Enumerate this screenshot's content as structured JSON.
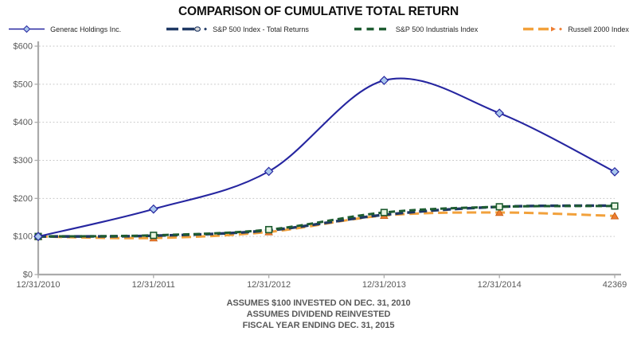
{
  "title": "COMPARISON OF CUMULATIVE TOTAL RETURN",
  "footer": {
    "line1": "ASSUMES $100 INVESTED ON DEC. 31, 2010",
    "line2": "ASSUMES DIVIDEND REINVESTED",
    "line3": "FISCAL YEAR ENDING DEC. 31, 2015"
  },
  "colors": {
    "generac_line": "#2626A0",
    "generac_marker_fill": "#A9C7EC",
    "sp500_line": "#1F3864",
    "sp500_marker_fill": "#D9D9D9",
    "industrials_line": "#1E5C31",
    "industrials_marker_fill": "#EAF5E2",
    "russell_line": "#F2A13B",
    "russell_marker_fill": "#ED7D31",
    "axis": "#ABABAB",
    "gridline": "#C6C6C6",
    "tick_label": "#595959"
  },
  "chart_data": {
    "type": "line",
    "title": "COMPARISON OF CUMULATIVE TOTAL RETURN",
    "categories": [
      "12/31/2010",
      "12/31/2011",
      "12/31/2012",
      "12/31/2013",
      "12/31/2014",
      "42369"
    ],
    "y_ticks": [
      "$0",
      "$100",
      "$200",
      "$300",
      "$400",
      "$500",
      "$600"
    ],
    "y_tick_values": [
      0,
      100,
      200,
      300,
      400,
      500,
      600
    ],
    "ylim": [
      0,
      600
    ],
    "grid": "horizontal dotted",
    "legend_position": "top",
    "line_smoothing": true,
    "series": [
      {
        "name": "Generac Holdings Inc.",
        "values": [
          100,
          172,
          271,
          510,
          424,
          270
        ],
        "color": "#2626A0",
        "style": "solid",
        "marker": "diamond",
        "marker_fill": "#A9C7EC"
      },
      {
        "name": "S&P 500 Index - Total Returns",
        "values": [
          100,
          102,
          116,
          157,
          178,
          181
        ],
        "color": "#1F3864",
        "style": "dashed",
        "marker": "oval",
        "marker_fill": "#D9D9D9"
      },
      {
        "name": "S&P 500 Industrials Index",
        "values": [
          100,
          103,
          118,
          163,
          178,
          180
        ],
        "color": "#1E5C31",
        "style": "dashed",
        "marker": "square",
        "marker_fill": "#EAF5E2"
      },
      {
        "name": "Russell 2000 Index",
        "values": [
          100,
          96,
          112,
          155,
          163,
          154
        ],
        "color": "#F2A13B",
        "style": "dashed",
        "marker": "triangle",
        "marker_fill": "#ED7D31"
      }
    ]
  }
}
